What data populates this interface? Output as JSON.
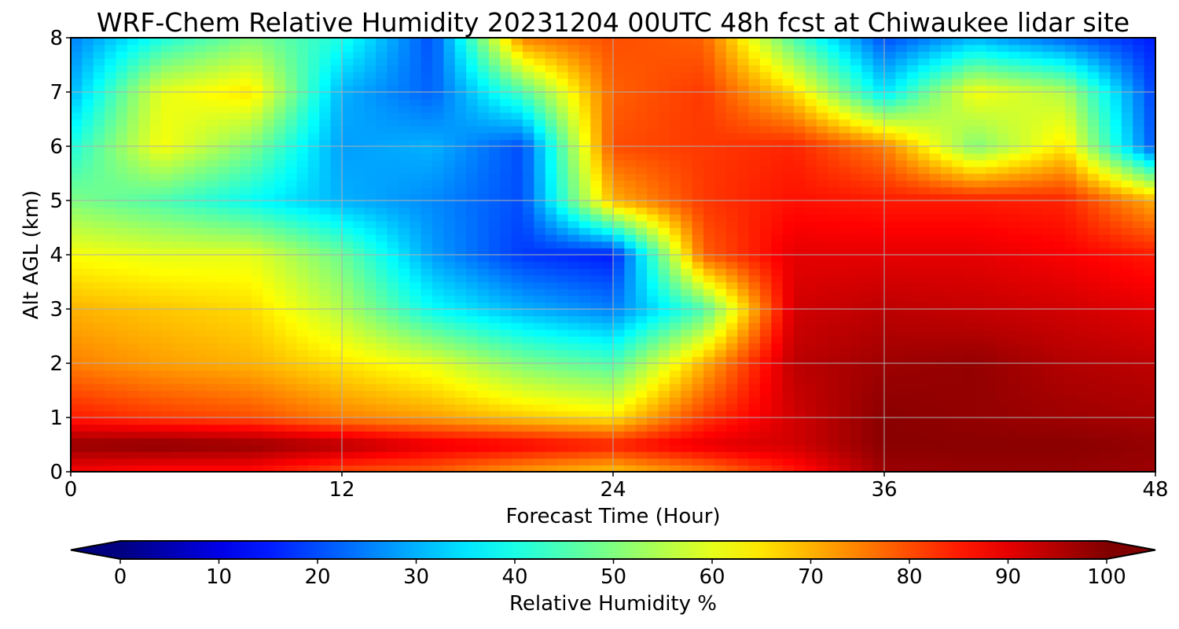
{
  "chart_data": {
    "type": "heatmap",
    "title": "WRF-Chem Relative Humidity 20231204 00UTC 48h fcst at Chiwaukee lidar site",
    "xlabel": "Forecast Time (Hour)",
    "ylabel": "Alt AGL (km)",
    "xlim": [
      0,
      48
    ],
    "ylim": [
      0,
      8
    ],
    "xticks": [
      0,
      12,
      24,
      36,
      48
    ],
    "yticks": [
      0,
      1,
      2,
      3,
      4,
      5,
      6,
      7,
      8
    ],
    "grid": true,
    "colorbar": {
      "label": "Relative Humidity %",
      "ticks": [
        0,
        10,
        20,
        30,
        40,
        50,
        60,
        70,
        80,
        90,
        100
      ],
      "range": [
        0,
        100
      ],
      "extend": "both",
      "colormap": "jet"
    },
    "x": [
      0,
      4,
      8,
      12,
      16,
      20,
      24,
      28,
      32,
      36,
      40,
      44,
      48
    ],
    "y": [
      0,
      0.5,
      1,
      2,
      3,
      4,
      5,
      6,
      7,
      8
    ],
    "z": [
      [
        88,
        86,
        86,
        80,
        78,
        72,
        68,
        75,
        85,
        97,
        98,
        98,
        97
      ],
      [
        98,
        99,
        98,
        95,
        90,
        88,
        85,
        90,
        92,
        99,
        99,
        99,
        98
      ],
      [
        85,
        82,
        80,
        75,
        72,
        68,
        65,
        82,
        92,
        99,
        98,
        97,
        96
      ],
      [
        75,
        72,
        70,
        65,
        60,
        50,
        45,
        70,
        94,
        97,
        98,
        95,
        94
      ],
      [
        70,
        68,
        66,
        55,
        38,
        30,
        25,
        45,
        92,
        94,
        93,
        92,
        90
      ],
      [
        62,
        60,
        60,
        48,
        28,
        18,
        15,
        78,
        90,
        90,
        90,
        88,
        85
      ],
      [
        50,
        45,
        38,
        30,
        26,
        20,
        70,
        82,
        86,
        85,
        85,
        84,
        70
      ],
      [
        40,
        62,
        50,
        28,
        30,
        20,
        80,
        82,
        84,
        75,
        50,
        65,
        20
      ],
      [
        30,
        60,
        65,
        30,
        22,
        45,
        78,
        82,
        66,
        35,
        62,
        55,
        18
      ],
      [
        25,
        40,
        50,
        40,
        20,
        75,
        80,
        78,
        45,
        20,
        30,
        22,
        15
      ]
    ]
  }
}
